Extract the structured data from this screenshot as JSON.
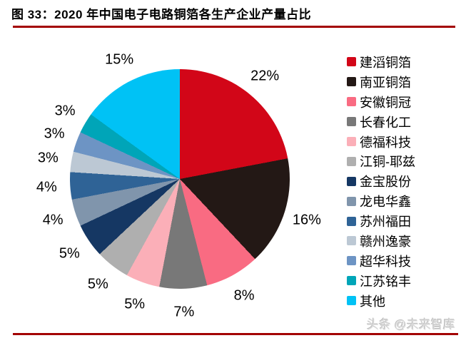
{
  "title": "图 33：2020 年中国电子电路铜箔各生产企业产量占比",
  "watermark": "头条 @未来智库",
  "colors": {
    "rule_red": "#a30000",
    "label_text": "#000000"
  },
  "chart_data": {
    "type": "pie",
    "title": "2020 年中国电子电路铜箔各生产企业产量占比",
    "start_angle_deg": 0,
    "direction": "clockwise",
    "legend_position": "right",
    "slices": [
      {
        "label": "建滔铜箔",
        "value_pct": 22,
        "color": "#d20618",
        "data_label": "22%"
      },
      {
        "label": "南亚铜箔",
        "value_pct": 16,
        "color": "#231815",
        "data_label": "16%"
      },
      {
        "label": "安徽铜冠",
        "value_pct": 8,
        "color": "#f96b82",
        "data_label": "8%"
      },
      {
        "label": "长春化工",
        "value_pct": 7,
        "color": "#787878",
        "data_label": "7%"
      },
      {
        "label": "德福科技",
        "value_pct": 5,
        "color": "#fbafb8",
        "data_label": "5%"
      },
      {
        "label": "江铜-耶兹",
        "value_pct": 5,
        "color": "#afafaf",
        "data_label": "5%"
      },
      {
        "label": "金宝股份",
        "value_pct": 5,
        "color": "#153763",
        "data_label": "5%"
      },
      {
        "label": "龙电华鑫",
        "value_pct": 4,
        "color": "#8095ac",
        "data_label": "4%"
      },
      {
        "label": "苏州福田",
        "value_pct": 4,
        "color": "#2f6396",
        "data_label": "4%"
      },
      {
        "label": "赣州逸豪",
        "value_pct": 3,
        "color": "#bcc8d4",
        "data_label": "3%"
      },
      {
        "label": "超华科技",
        "value_pct": 3,
        "color": "#6d94c4",
        "data_label": "3%"
      },
      {
        "label": "江苏铭丰",
        "value_pct": 3,
        "color": "#00a5b8",
        "data_label": "3%"
      },
      {
        "label": "其他",
        "value_pct": 15,
        "color": "#00c2f5",
        "data_label": "15%"
      }
    ]
  }
}
